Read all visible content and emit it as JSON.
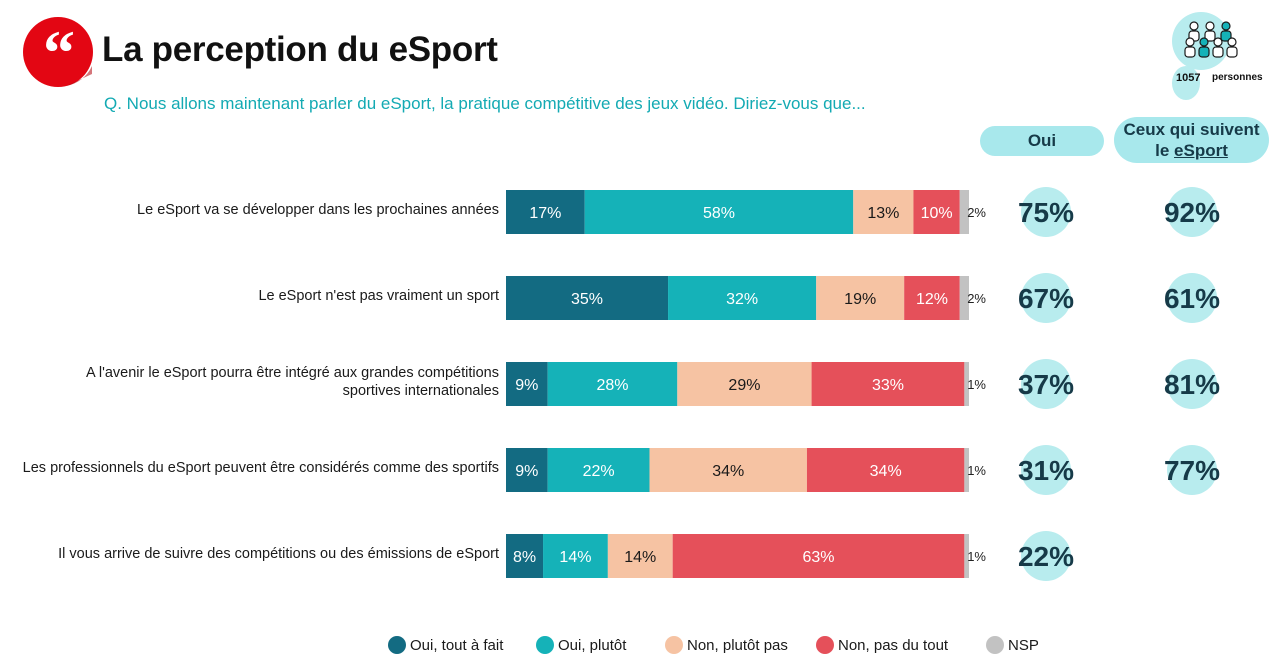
{
  "header": {
    "title": "La perception du eSport",
    "question": "Q. Nous allons maintenant parler du eSport, la pratique compétitive des jeux vidéo. Diriez-vous que...",
    "icon": "quote-icon",
    "accent_color": "#e30613"
  },
  "respondents": {
    "count": "1057",
    "label": "personnes",
    "icon": "people-group-icon"
  },
  "columns": {
    "oui": "Oui",
    "followers_line1": "Ceux qui suivent",
    "followers_line2_prefix": "le ",
    "followers_line2_link": "eSport"
  },
  "chart_data": {
    "type": "bar",
    "orientation": "horizontal",
    "stacked": true,
    "unit": "%",
    "categories": [
      "Le eSport va se développer dans les prochaines années",
      "Le eSport n'est pas vraiment un sport",
      "A l'avenir le eSport pourra être intégré aux grandes compétitions sportives internationales",
      "Les professionnels du eSport peuvent être considérés comme des sportifs",
      "Il vous arrive de suivre des compétitions ou des émissions de eSport"
    ],
    "category_lines": [
      [
        "Le eSport va se développer dans les prochaines années"
      ],
      [
        "Le eSport n'est pas vraiment un sport"
      ],
      [
        "A l'avenir le eSport pourra être intégré aux grandes compétitions",
        "sportives internationales"
      ],
      [
        "Les professionnels du eSport peuvent être considérés comme des sportifs"
      ],
      [
        "Il vous arrive de suivre des compétitions ou des émissions de eSport"
      ]
    ],
    "series": [
      {
        "name": "Oui, tout à fait",
        "color": "#136b82",
        "values": [
          17,
          35,
          9,
          9,
          8
        ]
      },
      {
        "name": "Oui, plutôt",
        "color": "#15b2b8",
        "values": [
          58,
          32,
          28,
          22,
          14
        ]
      },
      {
        "name": "Non, plutôt pas",
        "color": "#f6c3a3",
        "values": [
          13,
          19,
          29,
          34,
          14
        ]
      },
      {
        "name": "Non, pas du tout",
        "color": "#e5505a",
        "values": [
          10,
          12,
          33,
          34,
          63
        ]
      },
      {
        "name": "NSP",
        "color": "#c2c2c2",
        "values": [
          2,
          2,
          1,
          1,
          1
        ]
      }
    ],
    "total_oui": [
      "75%",
      "67%",
      "37%",
      "31%",
      "22%"
    ],
    "followers_oui": [
      "92%",
      "61%",
      "81%",
      "77%",
      null
    ],
    "legend_position": "bottom",
    "grid": false
  }
}
